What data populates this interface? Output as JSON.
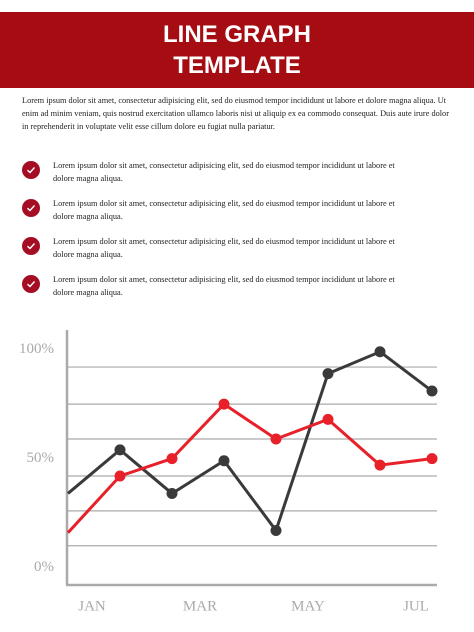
{
  "header": {
    "title_lines": [
      "LINE GRAPH",
      "TEMPLATE"
    ]
  },
  "intro": "Lorem ipsum dolor sit amet, consectetur adipisicing elit, sed do eiusmod tempor incididunt ut labore et dolore magna aliqua. Ut enim ad minim veniam, quis nostrud exercitation ullamco laboris nisi ut aliquip ex ea commodo consequat. Duis aute irure dolor in reprehenderit in voluptate velit esse cillum dolore eu fugiat nulla pariatur.",
  "bullets": [
    "Lorem ipsum dolor sit amet, consectetur adipisicing elit, sed do eiusmod tempor incididunt ut labore et dolore magna aliqua.",
    "Lorem ipsum dolor sit amet, consectetur adipisicing elit, sed do eiusmod tempor incididunt ut labore et dolore magna aliqua.",
    "Lorem ipsum dolor sit amet, consectetur adipisicing elit, sed do eiusmod tempor incididunt ut labore et dolore magna aliqua.",
    "Lorem ipsum dolor sit amet, consectetur adipisicing elit, sed do eiusmod tempor incididunt ut labore et dolore magna aliqua."
  ],
  "chart_data": {
    "type": "line",
    "x_labels": [
      "JAN",
      "MAR",
      "MAY",
      "JUL"
    ],
    "ylim": [
      -8,
      109
    ],
    "yticks": [
      {
        "value": 0,
        "label": "0%"
      },
      {
        "value": 50,
        "label": "50%"
      },
      {
        "value": 100,
        "label": "100%"
      }
    ],
    "gridlines": [
      10,
      26,
      42,
      59,
      75,
      92
    ],
    "series": [
      {
        "color": "#3a3a3a",
        "values": [
          34,
          54,
          34,
          49,
          17,
          89,
          99,
          81
        ]
      },
      {
        "color": "#e8202a",
        "values": [
          16,
          42,
          50,
          75,
          59,
          68,
          47,
          50
        ]
      }
    ]
  }
}
